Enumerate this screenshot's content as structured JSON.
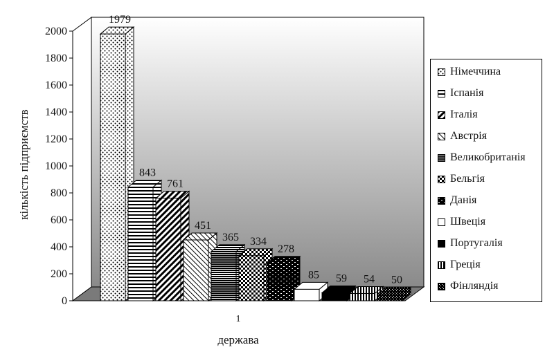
{
  "chart_data": {
    "type": "bar",
    "style": "3d",
    "categories": [
      "1"
    ],
    "xlabel": "держава",
    "ylabel": "кількість підприємств",
    "ylim": [
      0,
      2000
    ],
    "yticks": [
      0,
      200,
      400,
      600,
      800,
      1000,
      1200,
      1400,
      1600,
      1800,
      2000
    ],
    "grid": false,
    "legend_position": "right",
    "series": [
      {
        "name": "Німеччина",
        "values": [
          1979
        ],
        "pattern": "dots"
      },
      {
        "name": "Іспанія",
        "values": [
          843
        ],
        "pattern": "horizontal-lines"
      },
      {
        "name": "Італія",
        "values": [
          761
        ],
        "pattern": "diagonal-lines"
      },
      {
        "name": "Австрія",
        "values": [
          451
        ],
        "pattern": "light-diagonal"
      },
      {
        "name": "Великобританія",
        "values": [
          365
        ],
        "pattern": "dense-horizontal"
      },
      {
        "name": "Бельгія",
        "values": [
          334
        ],
        "pattern": "checker"
      },
      {
        "name": "Данія",
        "values": [
          278
        ],
        "pattern": "dark-brick"
      },
      {
        "name": "Швеція",
        "values": [
          85
        ],
        "pattern": "white"
      },
      {
        "name": "Португалія",
        "values": [
          59
        ],
        "pattern": "black"
      },
      {
        "name": "Греція",
        "values": [
          54
        ],
        "pattern": "vertical-lines"
      },
      {
        "name": "Фінляндія",
        "values": [
          50
        ],
        "pattern": "dark-checker"
      }
    ]
  }
}
